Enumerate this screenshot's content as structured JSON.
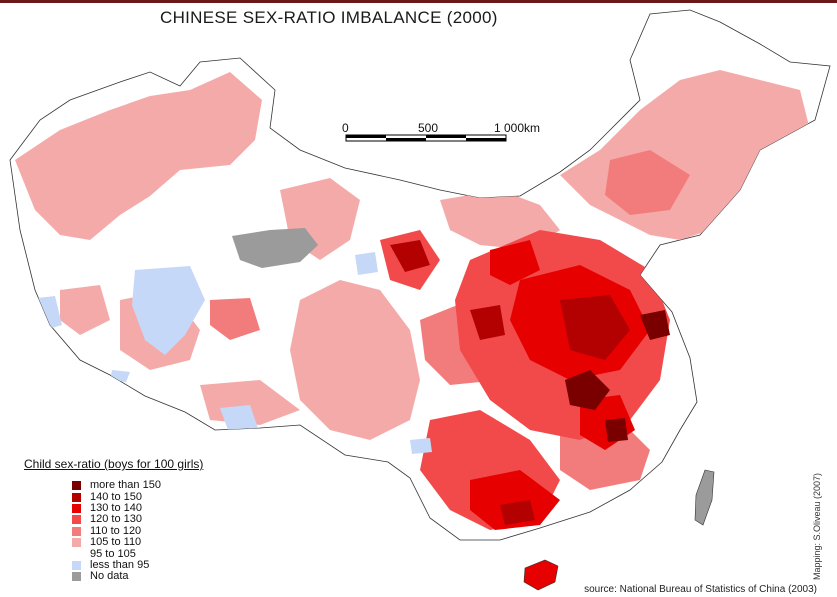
{
  "title": "CHINESE SEX-RATIO IMBALANCE (2000)",
  "scale_bar": {
    "labels": [
      "0",
      "500",
      "1 000km"
    ]
  },
  "legend": {
    "title": "Child sex-ratio (boys for 100 girls)",
    "items": [
      {
        "label": "more than 150",
        "color": "#7a0000"
      },
      {
        "label": "140 to 150",
        "color": "#b30000"
      },
      {
        "label": "130 to 140",
        "color": "#e60000"
      },
      {
        "label": "120 to 130",
        "color": "#f24a4a"
      },
      {
        "label": "110 to 120",
        "color": "#f27c7c"
      },
      {
        "label": "105 to 110",
        "color": "#f5aaaa"
      },
      {
        "label": "95 to 105",
        "color": "#ffffff"
      },
      {
        "label": "less than 95",
        "color": "#c6d8f7"
      },
      {
        "label": "No data",
        "color": "#9b9b9b"
      }
    ]
  },
  "credit": "Mapping: S.Oliveau (2007)",
  "source": "source: National Bureau of Statistics of China (2003)"
}
